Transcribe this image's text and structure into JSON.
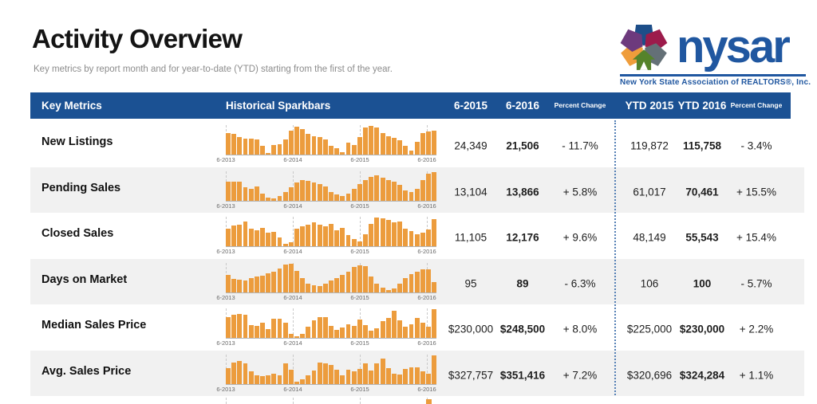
{
  "header": {
    "title": "Activity Overview",
    "subtitle": "Key metrics by report month and for year-to-date (YTD) starting from the first of the year."
  },
  "logo": {
    "wordmark": "nysar",
    "tagline": "New York State Association of REALTORS®, Inc.",
    "colors": {
      "blue": "#2057a0",
      "pinwheel_blue": "#1d4e89",
      "purple": "#6d3a7d",
      "crimson": "#9c1b4b",
      "orange": "#ef9d3b",
      "gray": "#647077",
      "green": "#55832b"
    }
  },
  "table": {
    "header_bg": "#1b5193",
    "alt_row_bg": "#f1f1f1",
    "sparkbar_color": "#ec9c3d",
    "divider_color": "#5580b5",
    "columns": {
      "key_metrics": "Key Metrics",
      "sparkbars": "Historical Sparkbars",
      "month_prev": "6-2015",
      "month_curr": "6-2016",
      "pct_change": "Percent Change",
      "ytd_prev": "YTD 2015",
      "ytd_curr": "YTD 2016",
      "ytd_pct_change": "Percent Change"
    },
    "axis_labels": [
      "6-2013",
      "6-2014",
      "6-2015",
      "6-2016"
    ],
    "rows": [
      {
        "label": "New Listings",
        "month_prev": "24,349",
        "month_curr": "21,506",
        "pct": "- 11.7%",
        "ytd_prev": "119,872",
        "ytd_curr": "115,758",
        "ytd_pct": "- 3.4%",
        "bars": [
          75,
          72,
          60,
          56,
          56,
          53,
          30,
          5,
          34,
          37,
          54,
          84,
          97,
          90,
          72,
          64,
          60,
          54,
          30,
          22,
          8,
          42,
          34,
          62,
          94,
          100,
          95,
          75,
          65,
          58,
          50,
          30,
          14,
          45,
          75,
          80,
          82
        ]
      },
      {
        "label": "Pending Sales",
        "month_prev": "13,104",
        "month_curr": "13,866",
        "pct": "+ 5.8%",
        "ytd_prev": "61,017",
        "ytd_curr": "70,461",
        "ytd_pct": "+ 15.5%",
        "bars": [
          66,
          64,
          64,
          46,
          40,
          48,
          24,
          10,
          8,
          14,
          30,
          46,
          62,
          70,
          68,
          62,
          56,
          48,
          28,
          20,
          16,
          24,
          40,
          56,
          70,
          82,
          88,
          80,
          72,
          64,
          54,
          36,
          28,
          40,
          70,
          92,
          100
        ]
      },
      {
        "label": "Closed Sales",
        "month_prev": "11,105",
        "month_curr": "12,176",
        "pct": "+ 9.6%",
        "ytd_prev": "48,149",
        "ytd_curr": "55,543",
        "ytd_pct": "+ 15.4%",
        "bars": [
          60,
          72,
          75,
          85,
          62,
          56,
          64,
          46,
          50,
          30,
          8,
          14,
          60,
          70,
          76,
          82,
          74,
          70,
          78,
          56,
          64,
          38,
          24,
          18,
          42,
          78,
          100,
          96,
          92,
          82,
          86,
          62,
          54,
          42,
          46,
          58,
          95
        ]
      },
      {
        "label": "Days on Market",
        "month_prev": "95",
        "month_curr": "89",
        "pct": "- 6.3%",
        "ytd_prev": "106",
        "ytd_curr": "100",
        "ytd_pct": "- 5.7%",
        "bars": [
          60,
          46,
          42,
          40,
          48,
          54,
          58,
          64,
          72,
          82,
          95,
          100,
          75,
          48,
          30,
          24,
          22,
          30,
          40,
          50,
          60,
          72,
          88,
          92,
          90,
          55,
          30,
          15,
          6,
          12,
          30,
          48,
          62,
          70,
          78,
          80,
          35
        ]
      },
      {
        "label": "Median Sales Price",
        "month_prev": "$230,000",
        "month_curr": "$248,500",
        "pct": "+ 8.0%",
        "ytd_prev": "$225,000",
        "ytd_curr": "$230,000",
        "ytd_pct": "+ 2.2%",
        "bars": [
          72,
          80,
          84,
          80,
          45,
          42,
          52,
          30,
          66,
          66,
          54,
          15,
          6,
          14,
          38,
          62,
          72,
          72,
          42,
          28,
          36,
          46,
          42,
          64,
          45,
          25,
          32,
          58,
          70,
          95,
          62,
          38,
          46,
          70,
          52,
          40,
          100
        ]
      },
      {
        "label": "Avg. Sales Price",
        "month_prev": "$327,757",
        "month_curr": "$351,416",
        "pct": "+ 7.2%",
        "ytd_prev": "$320,696",
        "ytd_curr": "$324,284",
        "ytd_pct": "+ 1.1%",
        "bars": [
          55,
          75,
          78,
          72,
          42,
          30,
          26,
          30,
          36,
          30,
          72,
          48,
          8,
          14,
          28,
          45,
          74,
          70,
          65,
          48,
          30,
          48,
          44,
          52,
          70,
          46,
          72,
          88,
          55,
          35,
          32,
          52,
          56,
          58,
          42,
          35,
          100
        ]
      }
    ],
    "partial_row": {
      "visible_bar_position": "6-2016"
    }
  }
}
